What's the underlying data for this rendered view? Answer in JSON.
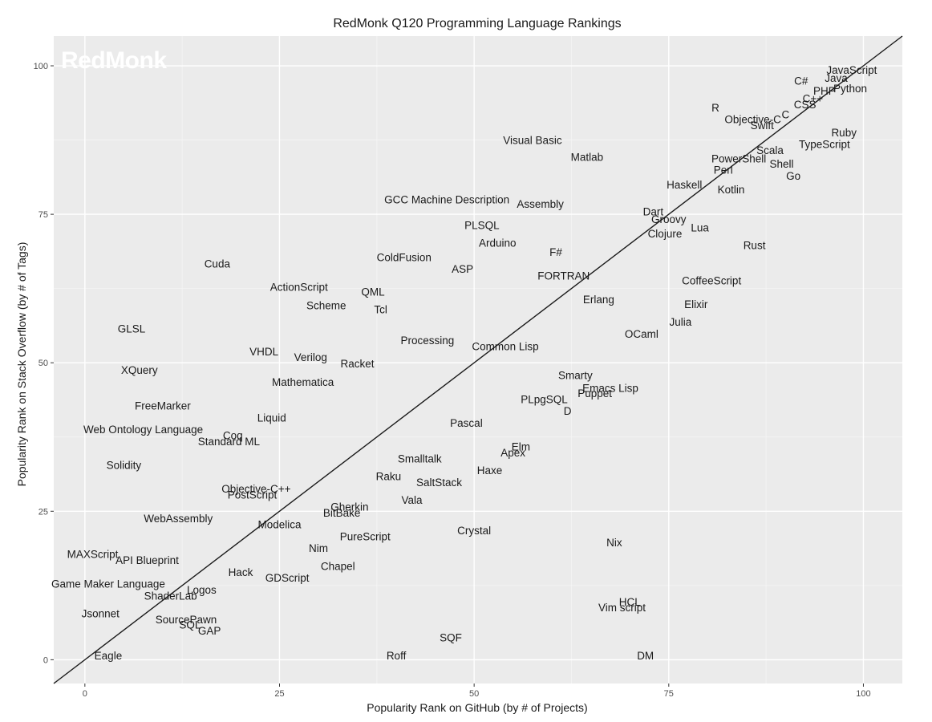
{
  "chart_data": {
    "type": "scatter",
    "title": "RedMonk Q120 Programming Language Rankings",
    "xlabel": "Popularity Rank on GitHub (by # of Projects)",
    "ylabel": "Popularity Rank on Stack Overflow (by # of Tags)",
    "watermark": "RedMonk",
    "xlim": [
      -4,
      105
    ],
    "ylim": [
      -4,
      105
    ],
    "xticks": [
      0,
      25,
      50,
      75,
      100
    ],
    "yticks": [
      0,
      25,
      50,
      75,
      100
    ],
    "grid": true,
    "reference_line": {
      "from": [
        0,
        0
      ],
      "to": [
        100,
        100
      ]
    },
    "points": [
      {
        "label": "JavaScript",
        "x": 98.5,
        "y": 99.3
      },
      {
        "label": "Java",
        "x": 96.5,
        "y": 98.0
      },
      {
        "label": "Python",
        "x": 98.3,
        "y": 96.2
      },
      {
        "label": "PHP",
        "x": 95.0,
        "y": 95.8
      },
      {
        "label": "C++",
        "x": 93.5,
        "y": 94.5
      },
      {
        "label": "CSS",
        "x": 92.5,
        "y": 93.5
      },
      {
        "label": "C#",
        "x": 92.0,
        "y": 97.5
      },
      {
        "label": "C",
        "x": 90.0,
        "y": 91.8
      },
      {
        "label": "R",
        "x": 81.0,
        "y": 93.0
      },
      {
        "label": "Objective-C",
        "x": 85.8,
        "y": 91.0
      },
      {
        "label": "Swift",
        "x": 87.0,
        "y": 90.0
      },
      {
        "label": "Ruby",
        "x": 97.5,
        "y": 88.8
      },
      {
        "label": "TypeScript",
        "x": 95.0,
        "y": 86.8
      },
      {
        "label": "Scala",
        "x": 88.0,
        "y": 85.8
      },
      {
        "label": "PowerShell",
        "x": 84.0,
        "y": 84.4
      },
      {
        "label": "Shell",
        "x": 89.5,
        "y": 83.5
      },
      {
        "label": "Perl",
        "x": 82.0,
        "y": 82.5
      },
      {
        "label": "Go",
        "x": 91.0,
        "y": 81.5
      },
      {
        "label": "Haskell",
        "x": 77.0,
        "y": 80.0
      },
      {
        "label": "Kotlin",
        "x": 83.0,
        "y": 79.2
      },
      {
        "label": "Visual Basic",
        "x": 57.5,
        "y": 87.5
      },
      {
        "label": "Matlab",
        "x": 64.5,
        "y": 84.7
      },
      {
        "label": "GCC Machine Description",
        "x": 46.5,
        "y": 77.5
      },
      {
        "label": "Assembly",
        "x": 58.5,
        "y": 76.8
      },
      {
        "label": "PLSQL",
        "x": 51.0,
        "y": 73.2
      },
      {
        "label": "Arduino",
        "x": 53.0,
        "y": 70.2
      },
      {
        "label": "Dart",
        "x": 73.0,
        "y": 75.5
      },
      {
        "label": "Groovy",
        "x": 75.0,
        "y": 74.2
      },
      {
        "label": "Lua",
        "x": 79.0,
        "y": 72.8
      },
      {
        "label": "Clojure",
        "x": 74.5,
        "y": 71.8
      },
      {
        "label": "Rust",
        "x": 86.0,
        "y": 69.8
      },
      {
        "label": "F#",
        "x": 60.5,
        "y": 68.7
      },
      {
        "label": "ColdFusion",
        "x": 41.0,
        "y": 67.8
      },
      {
        "label": "ASP",
        "x": 48.5,
        "y": 65.8
      },
      {
        "label": "FORTRAN",
        "x": 61.5,
        "y": 64.7
      },
      {
        "label": "CoffeeScript",
        "x": 80.5,
        "y": 63.9
      },
      {
        "label": "Cuda",
        "x": 17.0,
        "y": 66.7
      },
      {
        "label": "ActionScript",
        "x": 27.5,
        "y": 62.8
      },
      {
        "label": "QML",
        "x": 37.0,
        "y": 62.0
      },
      {
        "label": "Scheme",
        "x": 31.0,
        "y": 59.7
      },
      {
        "label": "Tcl",
        "x": 38.0,
        "y": 59.0
      },
      {
        "label": "Erlang",
        "x": 66.0,
        "y": 60.7
      },
      {
        "label": "Elixir",
        "x": 78.5,
        "y": 59.9
      },
      {
        "label": "Julia",
        "x": 76.5,
        "y": 56.9
      },
      {
        "label": "OCaml",
        "x": 71.5,
        "y": 54.9
      },
      {
        "label": "GLSL",
        "x": 6.0,
        "y": 55.8
      },
      {
        "label": "Processing",
        "x": 44.0,
        "y": 53.8
      },
      {
        "label": "Common Lisp",
        "x": 54.0,
        "y": 52.8
      },
      {
        "label": "VHDL",
        "x": 23.0,
        "y": 51.9
      },
      {
        "label": "Verilog",
        "x": 29.0,
        "y": 51.0
      },
      {
        "label": "Racket",
        "x": 35.0,
        "y": 49.9
      },
      {
        "label": "XQuery",
        "x": 7.0,
        "y": 48.8
      },
      {
        "label": "Mathematica",
        "x": 28.0,
        "y": 46.8
      },
      {
        "label": "Smarty",
        "x": 63.0,
        "y": 47.9
      },
      {
        "label": "Emacs Lisp",
        "x": 67.5,
        "y": 45.8
      },
      {
        "label": "Puppet",
        "x": 65.5,
        "y": 44.9
      },
      {
        "label": "PLpgSQL",
        "x": 59.0,
        "y": 43.9
      },
      {
        "label": "D",
        "x": 62.0,
        "y": 41.9
      },
      {
        "label": "FreeMarker",
        "x": 10.0,
        "y": 42.8
      },
      {
        "label": "Liquid",
        "x": 24.0,
        "y": 40.8
      },
      {
        "label": "Web Ontology Language",
        "x": 7.5,
        "y": 38.8
      },
      {
        "label": "Coq",
        "x": 19.0,
        "y": 37.8
      },
      {
        "label": "Standard ML",
        "x": 18.5,
        "y": 36.8
      },
      {
        "label": "Pascal",
        "x": 49.0,
        "y": 39.9
      },
      {
        "label": "Elm",
        "x": 56.0,
        "y": 35.9
      },
      {
        "label": "Apex",
        "x": 55.0,
        "y": 34.9
      },
      {
        "label": "Smalltalk",
        "x": 43.0,
        "y": 33.9
      },
      {
        "label": "Haxe",
        "x": 52.0,
        "y": 31.9
      },
      {
        "label": "Raku",
        "x": 39.0,
        "y": 30.9
      },
      {
        "label": "SaltStack",
        "x": 45.5,
        "y": 29.9
      },
      {
        "label": "Vala",
        "x": 42.0,
        "y": 26.9
      },
      {
        "label": "Solidity",
        "x": 5.0,
        "y": 32.8
      },
      {
        "label": "Objective-C++",
        "x": 22.0,
        "y": 28.8
      },
      {
        "label": "PostScript",
        "x": 21.5,
        "y": 27.8
      },
      {
        "label": "Gherkin",
        "x": 34.0,
        "y": 25.8
      },
      {
        "label": "BitBake",
        "x": 33.0,
        "y": 24.8
      },
      {
        "label": "WebAssembly",
        "x": 12.0,
        "y": 23.8
      },
      {
        "label": "Modelica",
        "x": 25.0,
        "y": 22.8
      },
      {
        "label": "Crystal",
        "x": 50.0,
        "y": 21.8
      },
      {
        "label": "PureScript",
        "x": 36.0,
        "y": 20.8
      },
      {
        "label": "Nix",
        "x": 68.0,
        "y": 19.8
      },
      {
        "label": "Nim",
        "x": 30.0,
        "y": 18.8
      },
      {
        "label": "MAXScript",
        "x": 1.0,
        "y": 17.8
      },
      {
        "label": "API Blueprint",
        "x": 8.0,
        "y": 16.8
      },
      {
        "label": "Chapel",
        "x": 32.5,
        "y": 15.8
      },
      {
        "label": "Hack",
        "x": 20.0,
        "y": 14.8
      },
      {
        "label": "GDScript",
        "x": 26.0,
        "y": 13.8
      },
      {
        "label": "Game Maker Language",
        "x": 3.0,
        "y": 12.8
      },
      {
        "label": "Logos",
        "x": 15.0,
        "y": 11.8
      },
      {
        "label": "ShaderLab",
        "x": 11.0,
        "y": 10.8
      },
      {
        "label": "HCL",
        "x": 70.0,
        "y": 9.8
      },
      {
        "label": "Vim script",
        "x": 69.0,
        "y": 8.8
      },
      {
        "label": "Jsonnet",
        "x": 2.0,
        "y": 7.8
      },
      {
        "label": "SourcePawn",
        "x": 13.0,
        "y": 6.8
      },
      {
        "label": "SQL",
        "x": 13.5,
        "y": 5.9
      },
      {
        "label": "GAP",
        "x": 16.0,
        "y": 4.9
      },
      {
        "label": "SQF",
        "x": 47.0,
        "y": 3.8
      },
      {
        "label": "Eagle",
        "x": 3.0,
        "y": 0.7
      },
      {
        "label": "Roff",
        "x": 40.0,
        "y": 0.7
      },
      {
        "label": "DM",
        "x": 72.0,
        "y": 0.7
      }
    ]
  }
}
